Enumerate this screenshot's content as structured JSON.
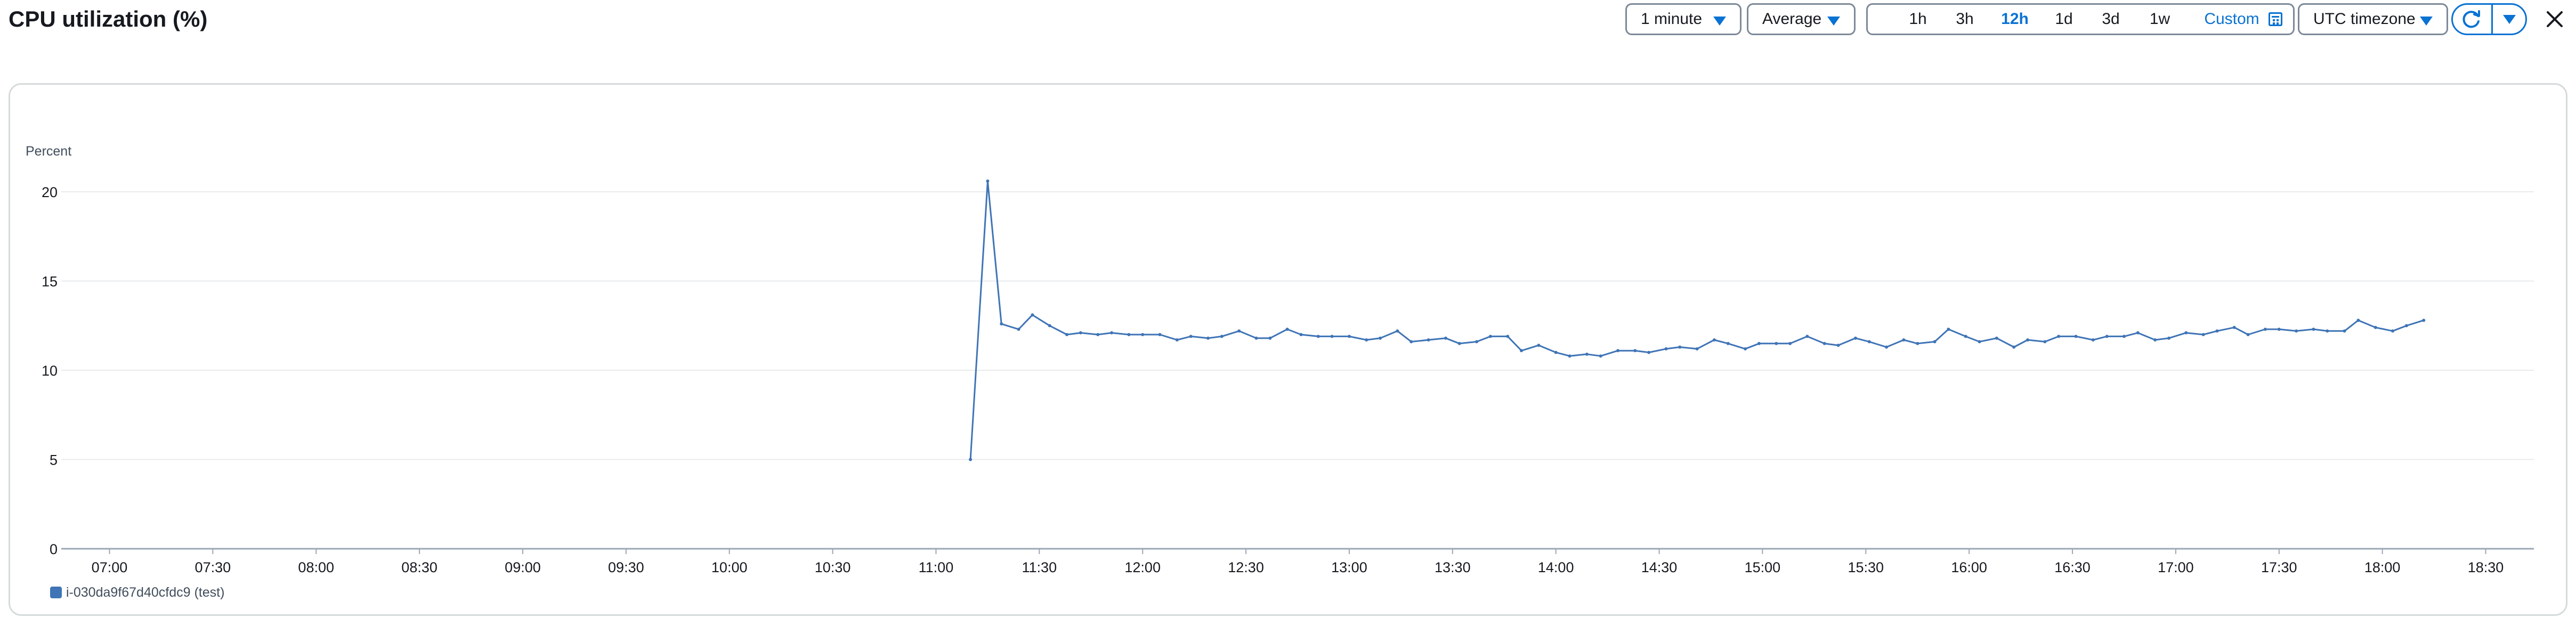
{
  "header": {
    "title": "CPU utilization (%)"
  },
  "toolbar": {
    "period": "1 minute",
    "statistic": "Average",
    "ranges": [
      "1h",
      "3h",
      "12h",
      "1d",
      "3d",
      "1w"
    ],
    "active_range": "12h",
    "custom_label": "Custom",
    "timezone": "UTC timezone"
  },
  "colors": {
    "series": "#3f74b6",
    "accent": "#0972d3",
    "grid": "#e9ebed",
    "axis_text": "#16191f"
  },
  "chart_data": {
    "type": "line",
    "title": "",
    "ylabel": "Percent",
    "xlabel": "",
    "ylim": [
      0,
      20
    ],
    "y_ticks": [
      0,
      5,
      10,
      15,
      20
    ],
    "x_range": [
      "06:46",
      "18:44"
    ],
    "x_ticks": [
      "07:00",
      "07:30",
      "08:00",
      "08:30",
      "09:00",
      "09:30",
      "10:00",
      "10:30",
      "11:00",
      "11:30",
      "12:00",
      "12:30",
      "13:00",
      "13:30",
      "14:00",
      "14:30",
      "15:00",
      "15:30",
      "16:00",
      "16:30",
      "17:00",
      "17:30",
      "18:00",
      "18:30"
    ],
    "grid": true,
    "legend_position": "bottom-left",
    "series": [
      {
        "name": "i-030da9f67d40cfdc9 (test)",
        "color": "#3f74b6",
        "points": [
          [
            "11:10",
            5.0
          ],
          [
            "11:15",
            20.6
          ],
          [
            "11:19",
            12.6
          ],
          [
            "11:24",
            12.3
          ],
          [
            "11:28",
            13.1
          ],
          [
            "11:33",
            12.5
          ],
          [
            "11:38",
            12.0
          ],
          [
            "11:42",
            12.1
          ],
          [
            "11:47",
            12.0
          ],
          [
            "11:51",
            12.1
          ],
          [
            "11:56",
            12.0
          ],
          [
            "12:00",
            12.0
          ],
          [
            "12:05",
            12.0
          ],
          [
            "12:10",
            11.7
          ],
          [
            "12:14",
            11.9
          ],
          [
            "12:19",
            11.8
          ],
          [
            "12:23",
            11.9
          ],
          [
            "12:28",
            12.2
          ],
          [
            "12:33",
            11.8
          ],
          [
            "12:37",
            11.8
          ],
          [
            "12:42",
            12.3
          ],
          [
            "12:46",
            12.0
          ],
          [
            "12:51",
            11.9
          ],
          [
            "12:55",
            11.9
          ],
          [
            "13:00",
            11.9
          ],
          [
            "13:05",
            11.7
          ],
          [
            "13:09",
            11.8
          ],
          [
            "13:14",
            12.2
          ],
          [
            "13:18",
            11.6
          ],
          [
            "13:23",
            11.7
          ],
          [
            "13:28",
            11.8
          ],
          [
            "13:32",
            11.5
          ],
          [
            "13:37",
            11.6
          ],
          [
            "13:41",
            11.9
          ],
          [
            "13:46",
            11.9
          ],
          [
            "13:50",
            11.1
          ],
          [
            "13:55",
            11.4
          ],
          [
            "14:00",
            11.0
          ],
          [
            "14:04",
            10.8
          ],
          [
            "14:09",
            10.9
          ],
          [
            "14:13",
            10.8
          ],
          [
            "14:18",
            11.1
          ],
          [
            "14:23",
            11.1
          ],
          [
            "14:27",
            11.0
          ],
          [
            "14:32",
            11.2
          ],
          [
            "14:36",
            11.3
          ],
          [
            "14:41",
            11.2
          ],
          [
            "14:46",
            11.7
          ],
          [
            "14:50",
            11.5
          ],
          [
            "14:55",
            11.2
          ],
          [
            "14:59",
            11.5
          ],
          [
            "15:04",
            11.5
          ],
          [
            "15:08",
            11.5
          ],
          [
            "15:13",
            11.9
          ],
          [
            "15:18",
            11.5
          ],
          [
            "15:22",
            11.4
          ],
          [
            "15:27",
            11.8
          ],
          [
            "15:31",
            11.6
          ],
          [
            "15:36",
            11.3
          ],
          [
            "15:41",
            11.7
          ],
          [
            "15:45",
            11.5
          ],
          [
            "15:50",
            11.6
          ],
          [
            "15:54",
            12.3
          ],
          [
            "15:59",
            11.9
          ],
          [
            "16:03",
            11.6
          ],
          [
            "16:08",
            11.8
          ],
          [
            "16:13",
            11.3
          ],
          [
            "16:17",
            11.7
          ],
          [
            "16:22",
            11.6
          ],
          [
            "16:26",
            11.9
          ],
          [
            "16:31",
            11.9
          ],
          [
            "16:36",
            11.7
          ],
          [
            "16:40",
            11.9
          ],
          [
            "16:45",
            11.9
          ],
          [
            "16:49",
            12.1
          ],
          [
            "16:54",
            11.7
          ],
          [
            "16:58",
            11.8
          ],
          [
            "17:03",
            12.1
          ],
          [
            "17:08",
            12.0
          ],
          [
            "17:12",
            12.2
          ],
          [
            "17:17",
            12.4
          ],
          [
            "17:21",
            12.0
          ],
          [
            "17:26",
            12.3
          ],
          [
            "17:30",
            12.3
          ],
          [
            "17:35",
            12.2
          ],
          [
            "17:40",
            12.3
          ],
          [
            "17:44",
            12.2
          ],
          [
            "17:49",
            12.2
          ],
          [
            "17:53",
            12.8
          ],
          [
            "17:58",
            12.4
          ],
          [
            "18:03",
            12.2
          ],
          [
            "18:07",
            12.5
          ],
          [
            "18:12",
            12.8
          ]
        ]
      }
    ]
  }
}
